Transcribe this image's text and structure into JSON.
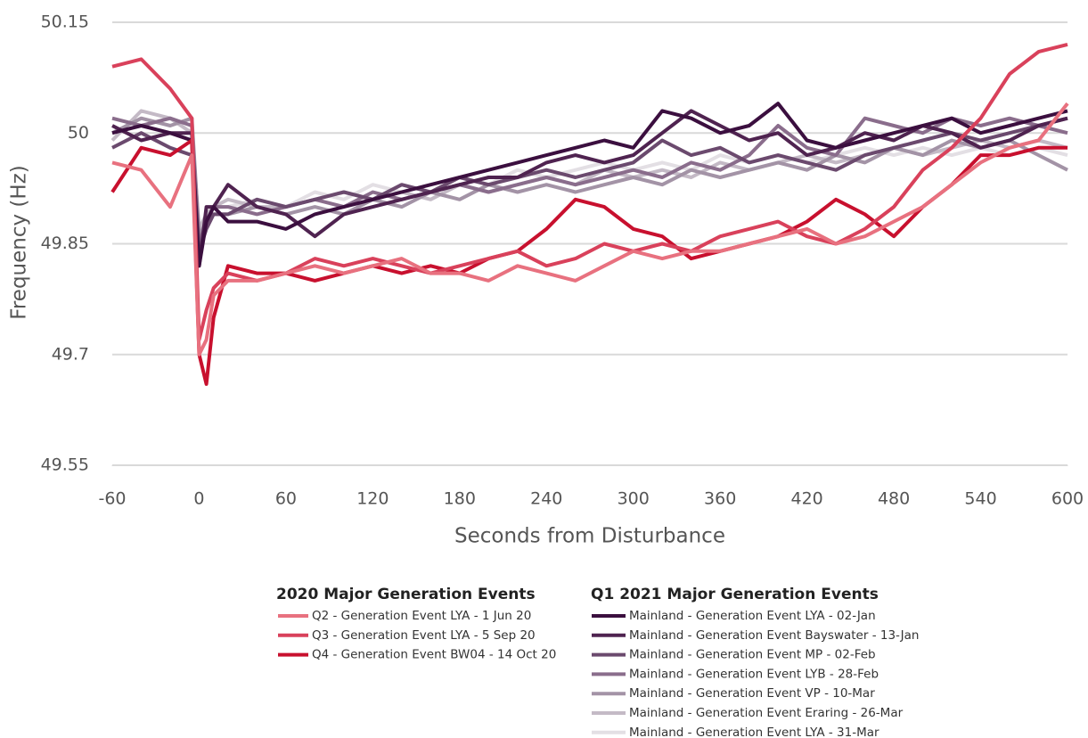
{
  "chart_data": {
    "type": "line",
    "x_label": "Seconds from Disturbance",
    "y_label": "Frequency (Hz)",
    "xlim": [
      -60,
      600
    ],
    "xticks": [
      -60,
      0,
      60,
      120,
      180,
      240,
      300,
      360,
      420,
      480,
      540,
      600
    ],
    "ylim": [
      49.55,
      50.15
    ],
    "yticks": [
      49.55,
      49.7,
      49.85,
      50,
      50.15
    ],
    "grid": true,
    "legend_titles": [
      "2020 Major Generation Events",
      "Q1 2021 Major Generation Events"
    ],
    "x": [
      -60,
      -40,
      -20,
      -5,
      0,
      5,
      10,
      20,
      40,
      60,
      80,
      100,
      120,
      140,
      160,
      180,
      200,
      220,
      240,
      260,
      280,
      300,
      320,
      340,
      360,
      380,
      400,
      420,
      440,
      460,
      480,
      500,
      520,
      540,
      560,
      580,
      600
    ],
    "series": [
      {
        "name": "Q2 - Generation Event LYA - 1 Jun 20",
        "group": 0,
        "color": "#e8717f",
        "values": [
          49.96,
          49.95,
          49.9,
          49.97,
          49.7,
          49.72,
          49.78,
          49.8,
          49.8,
          49.81,
          49.82,
          49.81,
          49.82,
          49.83,
          49.81,
          49.81,
          49.8,
          49.82,
          49.81,
          49.8,
          49.82,
          49.84,
          49.83,
          49.84,
          49.84,
          49.85,
          49.86,
          49.87,
          49.85,
          49.86,
          49.88,
          49.9,
          49.93,
          49.96,
          49.98,
          49.99,
          50.04
        ]
      },
      {
        "name": "Q3 - Generation Event LYA - 5 Sep 20",
        "group": 0,
        "color": "#d9415b",
        "values": [
          50.09,
          50.1,
          50.06,
          50.02,
          49.72,
          49.76,
          49.79,
          49.81,
          49.8,
          49.81,
          49.83,
          49.82,
          49.83,
          49.82,
          49.81,
          49.82,
          49.83,
          49.84,
          49.82,
          49.83,
          49.85,
          49.84,
          49.85,
          49.84,
          49.86,
          49.87,
          49.88,
          49.86,
          49.85,
          49.87,
          49.9,
          49.95,
          49.98,
          50.02,
          50.08,
          50.11,
          50.12
        ]
      },
      {
        "name": "Q4 - Generation Event BW04 - 14 Oct 20",
        "group": 0,
        "color": "#c8102e",
        "values": [
          49.92,
          49.98,
          49.97,
          49.99,
          49.7,
          49.66,
          49.75,
          49.82,
          49.81,
          49.81,
          49.8,
          49.81,
          49.82,
          49.81,
          49.82,
          49.81,
          49.83,
          49.84,
          49.87,
          49.91,
          49.9,
          49.87,
          49.86,
          49.83,
          49.84,
          49.85,
          49.86,
          49.88,
          49.91,
          49.89,
          49.86,
          49.9,
          49.93,
          49.97,
          49.97,
          49.98,
          49.98
        ]
      },
      {
        "name": "Mainland - Generation Event LYA - 02-Jan",
        "group": 1,
        "color": "#3b0f3f",
        "values": [
          50.0,
          50.01,
          50.0,
          49.99,
          49.82,
          49.88,
          49.9,
          49.88,
          49.88,
          49.87,
          49.89,
          49.9,
          49.91,
          49.92,
          49.93,
          49.94,
          49.95,
          49.96,
          49.97,
          49.98,
          49.99,
          49.98,
          50.03,
          50.02,
          50.0,
          50.01,
          50.04,
          49.99,
          49.98,
          49.99,
          50.0,
          50.01,
          50.02,
          50.0,
          50.01,
          50.02,
          50.03
        ]
      },
      {
        "name": "Mainland - Generation Event Bayswater - 13-Jan",
        "group": 1,
        "color": "#4f2350",
        "values": [
          50.01,
          49.99,
          50.0,
          50.0,
          49.82,
          49.9,
          49.9,
          49.93,
          49.9,
          49.89,
          49.86,
          49.89,
          49.9,
          49.91,
          49.92,
          49.93,
          49.94,
          49.94,
          49.96,
          49.97,
          49.96,
          49.97,
          50.0,
          50.03,
          50.01,
          49.99,
          50.0,
          49.97,
          49.98,
          50.0,
          49.99,
          50.01,
          50.0,
          49.98,
          49.99,
          50.01,
          50.02
        ]
      },
      {
        "name": "Mainland - Generation Event MP - 02-Feb",
        "group": 1,
        "color": "#6b4a6e",
        "values": [
          49.98,
          50.0,
          49.98,
          49.97,
          49.84,
          49.87,
          49.89,
          49.89,
          49.91,
          49.9,
          49.91,
          49.92,
          49.91,
          49.93,
          49.92,
          49.94,
          49.93,
          49.94,
          49.95,
          49.94,
          49.95,
          49.96,
          49.99,
          49.97,
          49.98,
          49.96,
          49.97,
          49.96,
          49.95,
          49.97,
          49.98,
          49.99,
          50.0,
          49.99,
          50.0,
          50.01,
          50.02
        ]
      },
      {
        "name": "Mainland - Generation Event LYB - 28-Feb",
        "group": 1,
        "color": "#8a6d8c",
        "values": [
          50.02,
          50.01,
          50.02,
          50.01,
          49.85,
          49.88,
          49.9,
          49.9,
          49.89,
          49.9,
          49.91,
          49.9,
          49.92,
          49.91,
          49.92,
          49.93,
          49.92,
          49.93,
          49.94,
          49.93,
          49.94,
          49.95,
          49.94,
          49.96,
          49.95,
          49.97,
          50.01,
          49.98,
          49.97,
          50.02,
          50.01,
          50.0,
          50.02,
          50.01,
          50.02,
          50.01,
          50.0
        ]
      },
      {
        "name": "Mainland - Generation Event VP - 10-Mar",
        "group": 1,
        "color": "#a393a6",
        "values": [
          50.0,
          50.02,
          50.01,
          50.02,
          49.86,
          49.88,
          49.89,
          49.89,
          49.9,
          49.89,
          49.9,
          49.89,
          49.91,
          49.9,
          49.92,
          49.91,
          49.93,
          49.92,
          49.93,
          49.92,
          49.93,
          49.94,
          49.93,
          49.95,
          49.94,
          49.95,
          49.96,
          49.95,
          49.97,
          49.96,
          49.98,
          49.97,
          49.99,
          49.98,
          49.99,
          49.97,
          49.95
        ]
      },
      {
        "name": "Mainland - Generation Event Eraring - 26-Mar",
        "group": 1,
        "color": "#c4bac6",
        "values": [
          49.99,
          50.03,
          50.02,
          50.0,
          49.87,
          49.89,
          49.9,
          49.91,
          49.9,
          49.9,
          49.91,
          49.92,
          49.91,
          49.92,
          49.91,
          49.93,
          49.92,
          49.93,
          49.94,
          49.93,
          49.95,
          49.94,
          49.95,
          49.94,
          49.96,
          49.95,
          49.96,
          49.97,
          49.96,
          49.97,
          49.98,
          49.97,
          49.98,
          49.99,
          49.98,
          49.99,
          49.98
        ]
      },
      {
        "name": "Mainland - Generation Event LYA - 31-Mar",
        "group": 1,
        "color": "#e3dfe4",
        "values": [
          50.0,
          50.01,
          50.0,
          49.99,
          49.87,
          49.89,
          49.9,
          49.9,
          49.91,
          49.9,
          49.92,
          49.91,
          49.93,
          49.92,
          49.93,
          49.94,
          49.93,
          49.95,
          49.94,
          49.95,
          49.96,
          49.95,
          49.96,
          49.95,
          49.97,
          49.96,
          49.97,
          49.96,
          49.97,
          49.98,
          49.97,
          49.98,
          49.97,
          49.98,
          49.97,
          49.98,
          49.97
        ]
      }
    ]
  }
}
